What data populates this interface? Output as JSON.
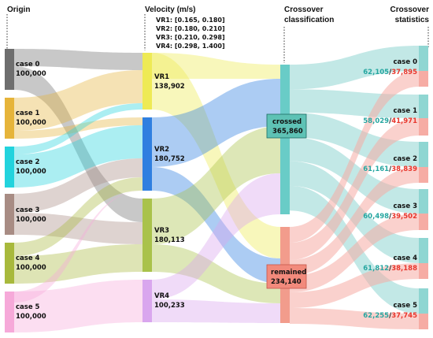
{
  "titles": {
    "origin": "Origin",
    "velocity": "Velocity  (m/s)",
    "crossover_line1": "Crossover",
    "crossover_line2": "classification",
    "stats_line1": "Crossover",
    "stats_line2": "statistics"
  },
  "velocity_ranges": [
    "VR1:  [0.165,  0.180]",
    "VR2:  [0.180,  0.210]",
    "VR3:  [0.210,  0.298]",
    "VR4:  [0.298,  1.400]"
  ],
  "origins": [
    {
      "label": "case  0",
      "value": "100,000",
      "color": "#6e6e6e"
    },
    {
      "label": "case  1",
      "value": "100,000",
      "color": "#e6b43a"
    },
    {
      "label": "case  2",
      "value": "100,000",
      "color": "#22d3dd"
    },
    {
      "label": "case  3",
      "value": "100,000",
      "color": "#a88c84"
    },
    {
      "label": "case  4",
      "value": "100,000",
      "color": "#a8b93c"
    },
    {
      "label": "case  5",
      "value": "100,000",
      "color": "#f6a9d9"
    }
  ],
  "velocities": [
    {
      "label": "VR1",
      "value": "138,902",
      "color": "#eeea55"
    },
    {
      "label": "VR2",
      "value": "180,752",
      "color": "#2f7fe0"
    },
    {
      "label": "VR3",
      "value": "180,113",
      "color": "#a9c24b"
    },
    {
      "label": "VR4",
      "value": "100,233",
      "color": "#d9a6ee"
    }
  ],
  "classes": [
    {
      "label": "crossed",
      "value": "365,860",
      "color": "#69ccc7",
      "badge": "#5ec2b5"
    },
    {
      "label": "remained",
      "value": "234,140",
      "color": "#f29c8c",
      "badge": "#f28a7c"
    }
  ],
  "stats": [
    {
      "label": "case 0",
      "crossed": "62,105",
      "sep": "/",
      "remained": "37,895"
    },
    {
      "label": "case 1",
      "crossed": "58,029",
      "sep": "/",
      "remained": "41,971"
    },
    {
      "label": "case 2",
      "crossed": "61,161",
      "sep": "/",
      "remained": "38,839"
    },
    {
      "label": "case 3",
      "crossed": "60,498",
      "sep": "/",
      "remained": "39,502"
    },
    {
      "label": "case 4",
      "crossed": "61,812",
      "sep": "/",
      "remained": "38,188"
    },
    {
      "label": "case 5",
      "crossed": "62,255",
      "sep": "/",
      "remained": "37,745"
    }
  ],
  "colors": {
    "crossed_text": "#25a6a0",
    "remained_text": "#e8362c",
    "crossed_flow": "#8fd6d2",
    "remained_flow": "#f6aca4"
  }
}
